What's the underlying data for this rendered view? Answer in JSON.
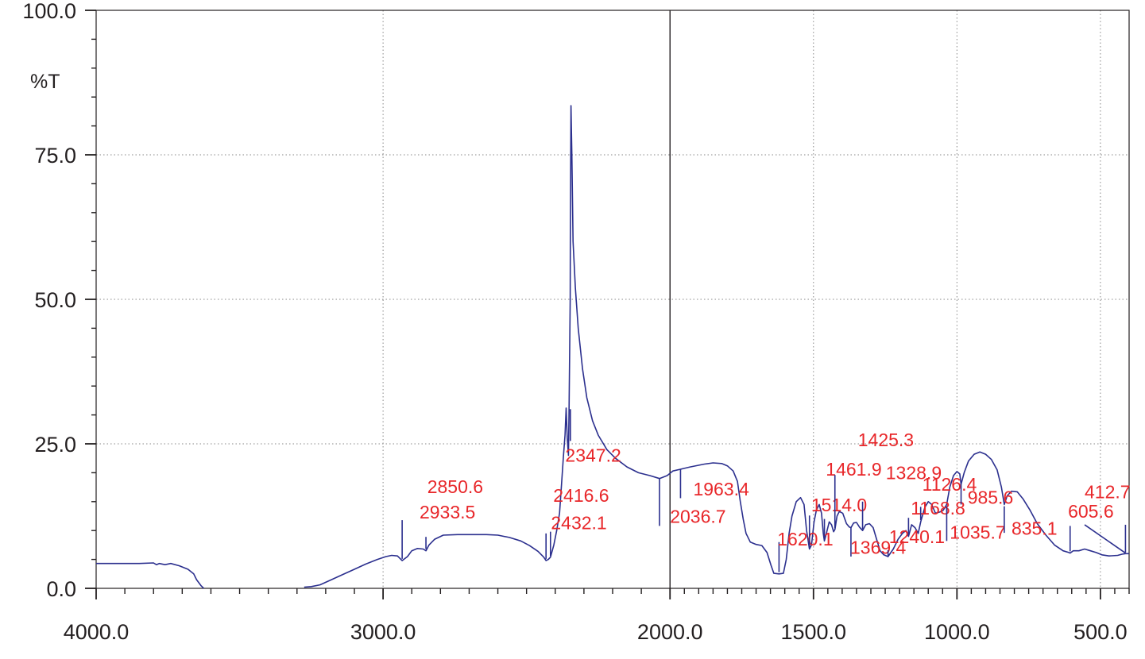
{
  "chart_data": {
    "type": "line",
    "title": "",
    "xlabel": "",
    "ylabel": "%T",
    "xlim": [
      4000,
      400
    ],
    "ylim": [
      0,
      100
    ],
    "x_reversed": true,
    "grid": true,
    "x_ticks": [
      {
        "value": 4000,
        "label": "4000.0"
      },
      {
        "value": 3000,
        "label": "3000.0"
      },
      {
        "value": 2000,
        "label": "2000.0"
      },
      {
        "value": 1500,
        "label": "1500.0"
      },
      {
        "value": 1000,
        "label": "1000.0"
      },
      {
        "value": 500,
        "label": "500.0"
      }
    ],
    "y_ticks": [
      {
        "value": 0,
        "label": "0.0"
      },
      {
        "value": 25,
        "label": "25.0"
      },
      {
        "value": 50,
        "label": "50.0"
      },
      {
        "value": 75,
        "label": "75.0"
      },
      {
        "value": 100,
        "label": "100.0"
      }
    ],
    "colors": {
      "line": "#2b2f8e",
      "peak_label": "#e8272a",
      "axis": "#231f20",
      "grid": "#888888"
    },
    "series": [
      {
        "segments": [
          [
            [
              4000,
              4.3
            ],
            [
              3900,
              4.3
            ],
            [
              3850,
              4.3
            ],
            [
              3800,
              4.4
            ],
            [
              3790,
              4.1
            ],
            [
              3780,
              4.3
            ],
            [
              3760,
              4.1
            ],
            [
              3740,
              4.3
            ],
            [
              3710,
              3.9
            ],
            [
              3680,
              3.3
            ],
            [
              3660,
              2.5
            ],
            [
              3650,
              1.5
            ],
            [
              3635,
              0.5
            ],
            [
              3625,
              0
            ]
          ],
          [
            [
              3275,
              0.2
            ],
            [
              3250,
              0.3
            ],
            [
              3220,
              0.6
            ],
            [
              3180,
              1.5
            ],
            [
              3140,
              2.4
            ],
            [
              3100,
              3.3
            ],
            [
              3060,
              4.2
            ],
            [
              3020,
              5.0
            ],
            [
              2990,
              5.5
            ],
            [
              2970,
              5.7
            ],
            [
              2950,
              5.6
            ],
            [
              2933.5,
              4.8
            ],
            [
              2915,
              5.5
            ],
            [
              2900,
              6.5
            ],
            [
              2880,
              6.9
            ],
            [
              2860,
              6.8
            ],
            [
              2850.6,
              6.5
            ],
            [
              2840,
              7.5
            ],
            [
              2820,
              8.5
            ],
            [
              2790,
              9.2
            ],
            [
              2740,
              9.3
            ],
            [
              2680,
              9.3
            ],
            [
              2640,
              9.3
            ],
            [
              2600,
              9.2
            ],
            [
              2560,
              8.8
            ],
            [
              2520,
              8.2
            ],
            [
              2490,
              7.4
            ],
            [
              2460,
              6.4
            ],
            [
              2440,
              5.4
            ],
            [
              2432.1,
              4.8
            ],
            [
              2424,
              5.0
            ],
            [
              2416.6,
              5.4
            ],
            [
              2405,
              7.5
            ],
            [
              2395,
              10.0
            ],
            [
              2385,
              13.0
            ],
            [
              2378,
              18.0
            ],
            [
              2372,
              22.5
            ],
            [
              2366,
              26.5
            ],
            [
              2362,
              31.2
            ],
            [
              2358,
              26.0
            ],
            [
              2354,
              23.0
            ],
            [
              2352,
              30.0
            ],
            [
              2348,
              50.0
            ],
            [
              2347.2,
              62.0
            ],
            [
              2345,
              83.5
            ],
            [
              2342,
              75.0
            ],
            [
              2338,
              60.0
            ],
            [
              2330,
              52.0
            ],
            [
              2320,
              45.0
            ],
            [
              2305,
              38.0
            ],
            [
              2290,
              33.0
            ],
            [
              2270,
              29.0
            ],
            [
              2250,
              26.5
            ],
            [
              2220,
              24.0
            ],
            [
              2190,
              22.5
            ],
            [
              2150,
              21.0
            ],
            [
              2110,
              20.0
            ],
            [
              2070,
              19.5
            ],
            [
              2036.7,
              19.0
            ],
            [
              2010,
              19.5
            ],
            [
              1990,
              20.3
            ],
            [
              1963.4,
              20.6
            ],
            [
              1930,
              21.0
            ],
            [
              1880,
              21.5
            ],
            [
              1850,
              21.7
            ],
            [
              1820,
              21.6
            ],
            [
              1800,
              21.2
            ],
            [
              1780,
              20.3
            ],
            [
              1765,
              18.5
            ],
            [
              1755,
              15.0
            ],
            [
              1745,
              12.0
            ],
            [
              1735,
              9.5
            ],
            [
              1720,
              8.0
            ],
            [
              1700,
              7.6
            ],
            [
              1680,
              7.4
            ],
            [
              1662,
              6.2
            ],
            [
              1648,
              4.0
            ],
            [
              1638,
              2.6
            ],
            [
              1620.1,
              2.5
            ],
            [
              1605,
              2.6
            ],
            [
              1595,
              5.0
            ],
            [
              1585,
              9.5
            ],
            [
              1575,
              12.5
            ],
            [
              1560,
              15.0
            ],
            [
              1545,
              15.7
            ],
            [
              1533,
              14.5
            ],
            [
              1524,
              10.0
            ],
            [
              1514.0,
              6.8
            ],
            [
              1507,
              7.5
            ],
            [
              1498,
              11.5
            ],
            [
              1490,
              13.5
            ],
            [
              1480,
              14.5
            ],
            [
              1472,
              13.0
            ],
            [
              1466,
              9.5
            ],
            [
              1461.9,
              8.2
            ],
            [
              1455,
              9.5
            ],
            [
              1445,
              11.5
            ],
            [
              1437,
              11.0
            ],
            [
              1430,
              9.8
            ],
            [
              1425.3,
              10.2
            ],
            [
              1418,
              12.5
            ],
            [
              1410,
              13.3
            ],
            [
              1398,
              13.0
            ],
            [
              1385,
              11.2
            ],
            [
              1375,
              10.6
            ],
            [
              1369.4,
              10.5
            ],
            [
              1360,
              11.3
            ],
            [
              1350,
              11.4
            ],
            [
              1340,
              10.6
            ],
            [
              1328.9,
              10.0
            ],
            [
              1318,
              11.0
            ],
            [
              1305,
              11.2
            ],
            [
              1292,
              10.5
            ],
            [
              1280,
              8.5
            ],
            [
              1268,
              6.5
            ],
            [
              1255,
              5.8
            ],
            [
              1240.1,
              5.5
            ],
            [
              1222,
              6.8
            ],
            [
              1205,
              8.5
            ],
            [
              1190,
              9.5
            ],
            [
              1178,
              10.0
            ],
            [
              1168.8,
              9.0
            ],
            [
              1158,
              11.0
            ],
            [
              1146,
              10.5
            ],
            [
              1135,
              9.5
            ],
            [
              1126.4,
              11.5
            ],
            [
              1112,
              14.0
            ],
            [
              1100,
              15.0
            ],
            [
              1088,
              14.5
            ],
            [
              1075,
              13.0
            ],
            [
              1060,
              13.2
            ],
            [
              1048,
              13.5
            ],
            [
              1035.7,
              14.5
            ],
            [
              1025,
              17.5
            ],
            [
              1012,
              19.5
            ],
            [
              1000,
              20.2
            ],
            [
              990,
              19.8
            ],
            [
              985.6,
              18.0
            ],
            [
              975,
              20.0
            ],
            [
              960,
              22.0
            ],
            [
              940,
              23.2
            ],
            [
              920,
              23.6
            ],
            [
              900,
              23.2
            ],
            [
              880,
              22.3
            ],
            [
              860,
              20.5
            ],
            [
              845,
              17.5
            ],
            [
              835.1,
              14.5
            ],
            [
              825,
              16.0
            ],
            [
              810,
              16.8
            ],
            [
              790,
              16.7
            ],
            [
              770,
              15.5
            ],
            [
              745,
              13.5
            ],
            [
              720,
              11.2
            ],
            [
              690,
              9.2
            ],
            [
              660,
              7.5
            ],
            [
              630,
              6.5
            ],
            [
              610,
              6.2
            ],
            [
              605.6,
              6.1
            ],
            [
              595,
              6.5
            ],
            [
              575,
              6.5
            ],
            [
              555,
              6.8
            ],
            [
              535,
              6.5
            ],
            [
              515,
              6.2
            ],
            [
              495,
              5.8
            ],
            [
              470,
              5.6
            ],
            [
              440,
              5.7
            ],
            [
              425,
              5.9
            ],
            [
              412.7,
              6.0
            ],
            [
              400,
              6.0
            ]
          ]
        ]
      }
    ],
    "peaks": [
      {
        "label": "2933.5",
        "x": 2933.5,
        "line_top": 11.8,
        "line_bottom": 5.1,
        "lx": 2873,
        "ly": 12.1
      },
      {
        "label": "2850.6",
        "x": 2850.6,
        "line_top": 8.9,
        "line_bottom": 6.8,
        "lx": 2846,
        "ly": 16.5
      },
      {
        "label": "2432.1",
        "x": 2432.1,
        "line_top": 9.5,
        "line_bottom": 5.1,
        "lx": 2415,
        "ly": 10.2
      },
      {
        "label": "2416.6",
        "x": 2416.6,
        "line_top": 9.8,
        "line_bottom": 5.6,
        "lx": 2407,
        "ly": 15.0
      },
      {
        "label": "2347.2",
        "x": 2347.2,
        "line_top": 31.0,
        "line_bottom": 25.5,
        "lx": 2365,
        "ly": 21.9
      },
      {
        "label": "2036.7",
        "x": 2036.7,
        "line_top": 10.8,
        "line_bottom": 19.0,
        "lx": 2000,
        "ly": 11.3
      },
      {
        "label": "1963.4",
        "x": 1963.4,
        "line_top": 15.6,
        "line_bottom": 20.6,
        "lx": 1919,
        "ly": 16.1
      },
      {
        "label": "1620.1",
        "x": 1620.1,
        "line_top": 2.8,
        "line_bottom": 8.0,
        "lx": 1626,
        "ly": 7.4
      },
      {
        "label": "1514.0",
        "x": 1514.0,
        "line_top": 7.0,
        "line_bottom": 12.6,
        "lx": 1508,
        "ly": 13.3
      },
      {
        "label": "1461.9",
        "x": 1461.9,
        "line_top": 8.5,
        "line_bottom": 12.0,
        "lx": 1457,
        "ly": 19.5
      },
      {
        "label": "1425.3",
        "x": 1425.3,
        "line_top": 19.6,
        "line_bottom": 10.4,
        "lx": 1345,
        "ly": 24.6
      },
      {
        "label": "1369.4",
        "x": 1369.4,
        "line_top": 5.5,
        "line_bottom": 10.6,
        "lx": 1372,
        "ly": 6.0
      },
      {
        "label": "1328.9",
        "x": 1328.9,
        "line_top": 15.0,
        "line_bottom": 10.2,
        "lx": 1248,
        "ly": 18.9
      },
      {
        "label": "1240.1",
        "x": 1240.1,
        "line_top": 5.5,
        "line_bottom": 6.6,
        "lx": 1237,
        "ly": 7.8
      },
      {
        "label": "1168.8",
        "x": 1168.8,
        "line_top": 9.2,
        "line_bottom": 12.2,
        "lx": 1161,
        "ly": 12.8
      },
      {
        "label": "1126.4",
        "x": 1126.4,
        "line_top": 11.8,
        "line_bottom": 14.1,
        "lx": 1121,
        "ly": 16.9
      },
      {
        "label": "1035.7",
        "x": 1035.7,
        "line_top": 8.2,
        "line_bottom": 14.2,
        "lx": 1025,
        "ly": 8.6
      },
      {
        "label": "985.6",
        "x": 985.6,
        "line_top": 14.5,
        "line_bottom": 18.3,
        "lx": 963,
        "ly": 14.6
      },
      {
        "label": "835.1",
        "x": 835.1,
        "line_top": 9.6,
        "line_bottom": 14.2,
        "lx": 810,
        "ly": 9.3
      },
      {
        "label": "605.6",
        "x": 605.6,
        "line_top": 6.4,
        "line_bottom": 10.8,
        "lx": 613,
        "ly": 12.2
      },
      {
        "label": "412.7",
        "x": 412.7,
        "line_top": 6.2,
        "line_bottom": 11.0,
        "lx": 555,
        "ly": 15.6
      }
    ]
  }
}
